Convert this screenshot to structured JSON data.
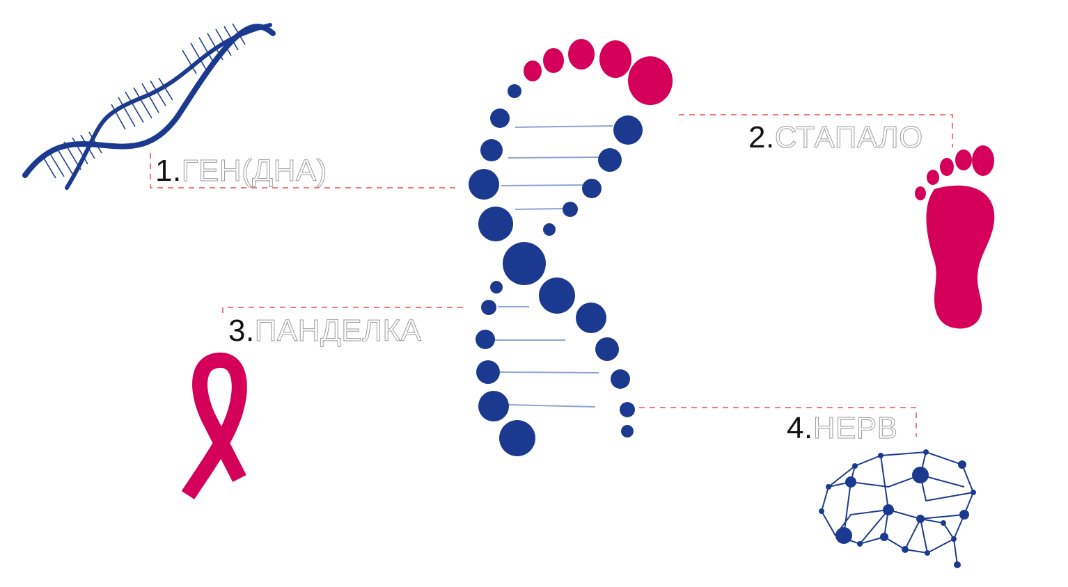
{
  "labels": [
    {
      "number": "1.",
      "word": "ГЕН(ДНА)"
    },
    {
      "number": "2.",
      "word": "СТАПАЛО"
    },
    {
      "number": "3.",
      "word": "ПАНДЕЛКА"
    },
    {
      "number": "4.",
      "word": "НЕРВ"
    }
  ],
  "icons": [
    "dna-helix-icon",
    "footprint-icon",
    "awareness-ribbon-icon",
    "neural-brain-icon",
    "dna-footprint-figure"
  ],
  "colors": {
    "navy": "#1b3a8f",
    "magenta": "#d4005a",
    "leader_line": "#f07a7a",
    "label_number": "#111111",
    "label_word_outline": "#9a9a9a"
  }
}
